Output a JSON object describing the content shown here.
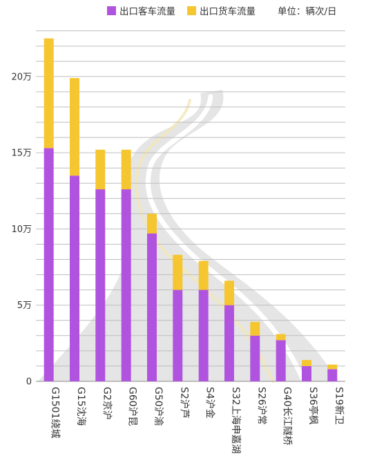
{
  "chart_data": {
    "type": "bar",
    "stacked": true,
    "categories": [
      "G1501绕城",
      "G15沈海",
      "G2京沪",
      "G60沪昆",
      "G50沪渝",
      "S2沪芦",
      "S4沪金",
      "S32上海申嘉湖",
      "S26沪常",
      "G40长江隧桥",
      "S36亭枫",
      "S19新卫"
    ],
    "series": [
      {
        "name": "出口客车流量",
        "color": "#b054e0",
        "values": [
          15.3,
          13.5,
          12.6,
          12.6,
          9.7,
          6.0,
          6.0,
          5.0,
          3.0,
          2.7,
          1.0,
          0.8
        ]
      },
      {
        "name": "出口货车流量",
        "color": "#f5c630",
        "values": [
          7.2,
          6.4,
          2.6,
          2.6,
          1.3,
          2.3,
          1.9,
          1.6,
          0.9,
          0.4,
          0.4,
          0.3
        ]
      }
    ],
    "unit": "单位：辆次/日",
    "yticks": [
      {
        "value": 0,
        "label": "0"
      },
      {
        "value": 5,
        "label": "5万"
      },
      {
        "value": 10,
        "label": "10万"
      },
      {
        "value": 15,
        "label": "15万"
      },
      {
        "value": 20,
        "label": "20万"
      }
    ],
    "ylim": [
      0,
      23.3
    ],
    "grid": true,
    "gridline_step": 1,
    "legend_position": "top-right"
  }
}
